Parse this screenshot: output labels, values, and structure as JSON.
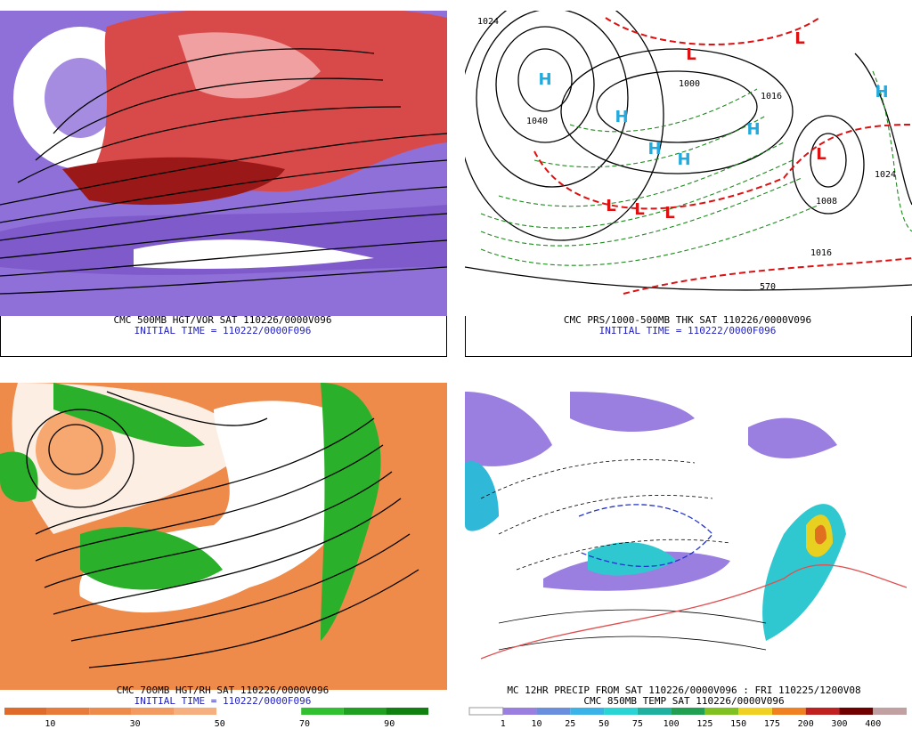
{
  "panels": [
    {
      "caption": "CMC 500MB HGT/VOR SAT 110226/0000V096",
      "initial_time": "INITIAL TIME = 110222/0000F096"
    },
    {
      "caption": "CMC PRS/1000-500MB THK SAT 110226/0000V096",
      "initial_time": "INITIAL TIME = 110222/0000F096",
      "labels": [
        "H",
        "H",
        "H",
        "H",
        "H",
        "H",
        "L",
        "L",
        "L",
        "L",
        "L",
        "L",
        "1040",
        "1024",
        "1024",
        "1016",
        "1016",
        "1008",
        "1000",
        "570"
      ]
    },
    {
      "caption": "CMC 700MB HGT/RH SAT 110226/0000V096",
      "initial_time": "INITIAL TIME = 110222/0000F096"
    },
    {
      "caption": "MC 12HR PRECIP FROM SAT 110226/0000V096 : FRI 110225/1200V08",
      "initial_time": "CMC 850MB TEMP SAT 110226/0000V096"
    }
  ],
  "legends": [
    {
      "ticks": [
        10,
        30,
        50,
        70,
        90
      ]
    },
    {
      "ticks": [
        1,
        10,
        25,
        50,
        75,
        100,
        125,
        150,
        175,
        200,
        300,
        400
      ]
    }
  ]
}
